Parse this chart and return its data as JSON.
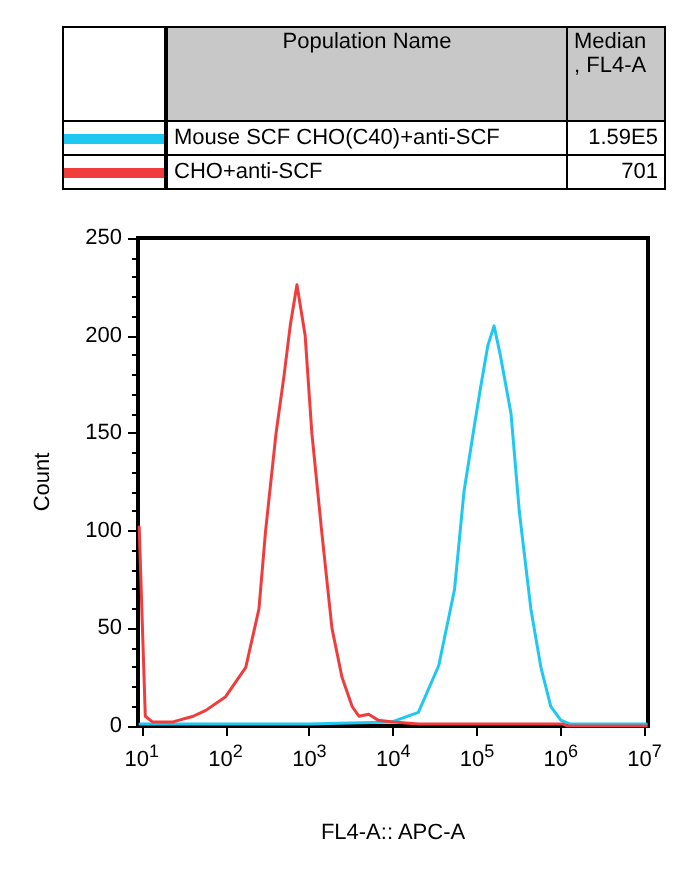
{
  "chart_data": {
    "type": "line",
    "xlabel": "FL4-A:: APC-A",
    "ylabel": "Count",
    "log": "x",
    "grid": false,
    "legend": "top",
    "marker": "none",
    "line_style": "solid",
    "annotations": [
      "Population Name",
      "Median , FL4-A",
      "1.59E5",
      "701"
    ],
    "xlim": [
      9,
      11000000
    ],
    "ylim": [
      0,
      250
    ],
    "yticks": [
      0,
      50,
      100,
      150,
      200,
      250
    ],
    "xticks": [
      {
        "value": 10,
        "label": "10$^{1}$"
      },
      {
        "value": 100,
        "label": "10$^{2}$"
      },
      {
        "value": 1000,
        "label": "10$^{3}$"
      },
      {
        "value": 10000,
        "label": "10$^{4}$"
      },
      {
        "value": 100000,
        "label": "10$^{5}$"
      },
      {
        "value": 1000000,
        "label": "10$^{6}$"
      },
      {
        "value": 10000000,
        "label": "10$^{7}$"
      }
    ],
    "series": [
      {
        "name": "Mouse SCF CHO(C40)+anti-SCF",
        "color": "#1ec8f0",
        "x": [
          9.5,
          100,
          1000,
          9500,
          20000,
          35000,
          54000,
          70000,
          94000,
          112000,
          135000,
          160000,
          190000,
          255000,
          320000,
          440000,
          580000,
          760000,
          1000000,
          1300000,
          2000000,
          10500000
        ],
        "values": [
          1,
          1,
          1,
          2,
          7,
          31,
          70,
          120,
          155,
          175,
          195,
          205,
          190,
          160,
          110,
          60,
          30,
          10,
          3,
          1,
          1,
          1
        ]
      },
      {
        "name": "CHO+anti-SCF",
        "color": "#f03c3c",
        "x": [
          9.3,
          11,
          13.5,
          23,
          41,
          58,
          100,
          174,
          250,
          300,
          400,
          500,
          590,
          710,
          890,
          1070,
          1400,
          1860,
          2450,
          3240,
          3900,
          5100,
          6600,
          10000,
          20000,
          100000,
          1070000,
          1200000,
          10500000
        ],
        "values": [
          102,
          5,
          2,
          2,
          5,
          8,
          15,
          30,
          60,
          100,
          150,
          180,
          205,
          226,
          200,
          150,
          100,
          50,
          25,
          10,
          5,
          6,
          3,
          2,
          1,
          1,
          1,
          0,
          0
        ]
      }
    ]
  }
}
